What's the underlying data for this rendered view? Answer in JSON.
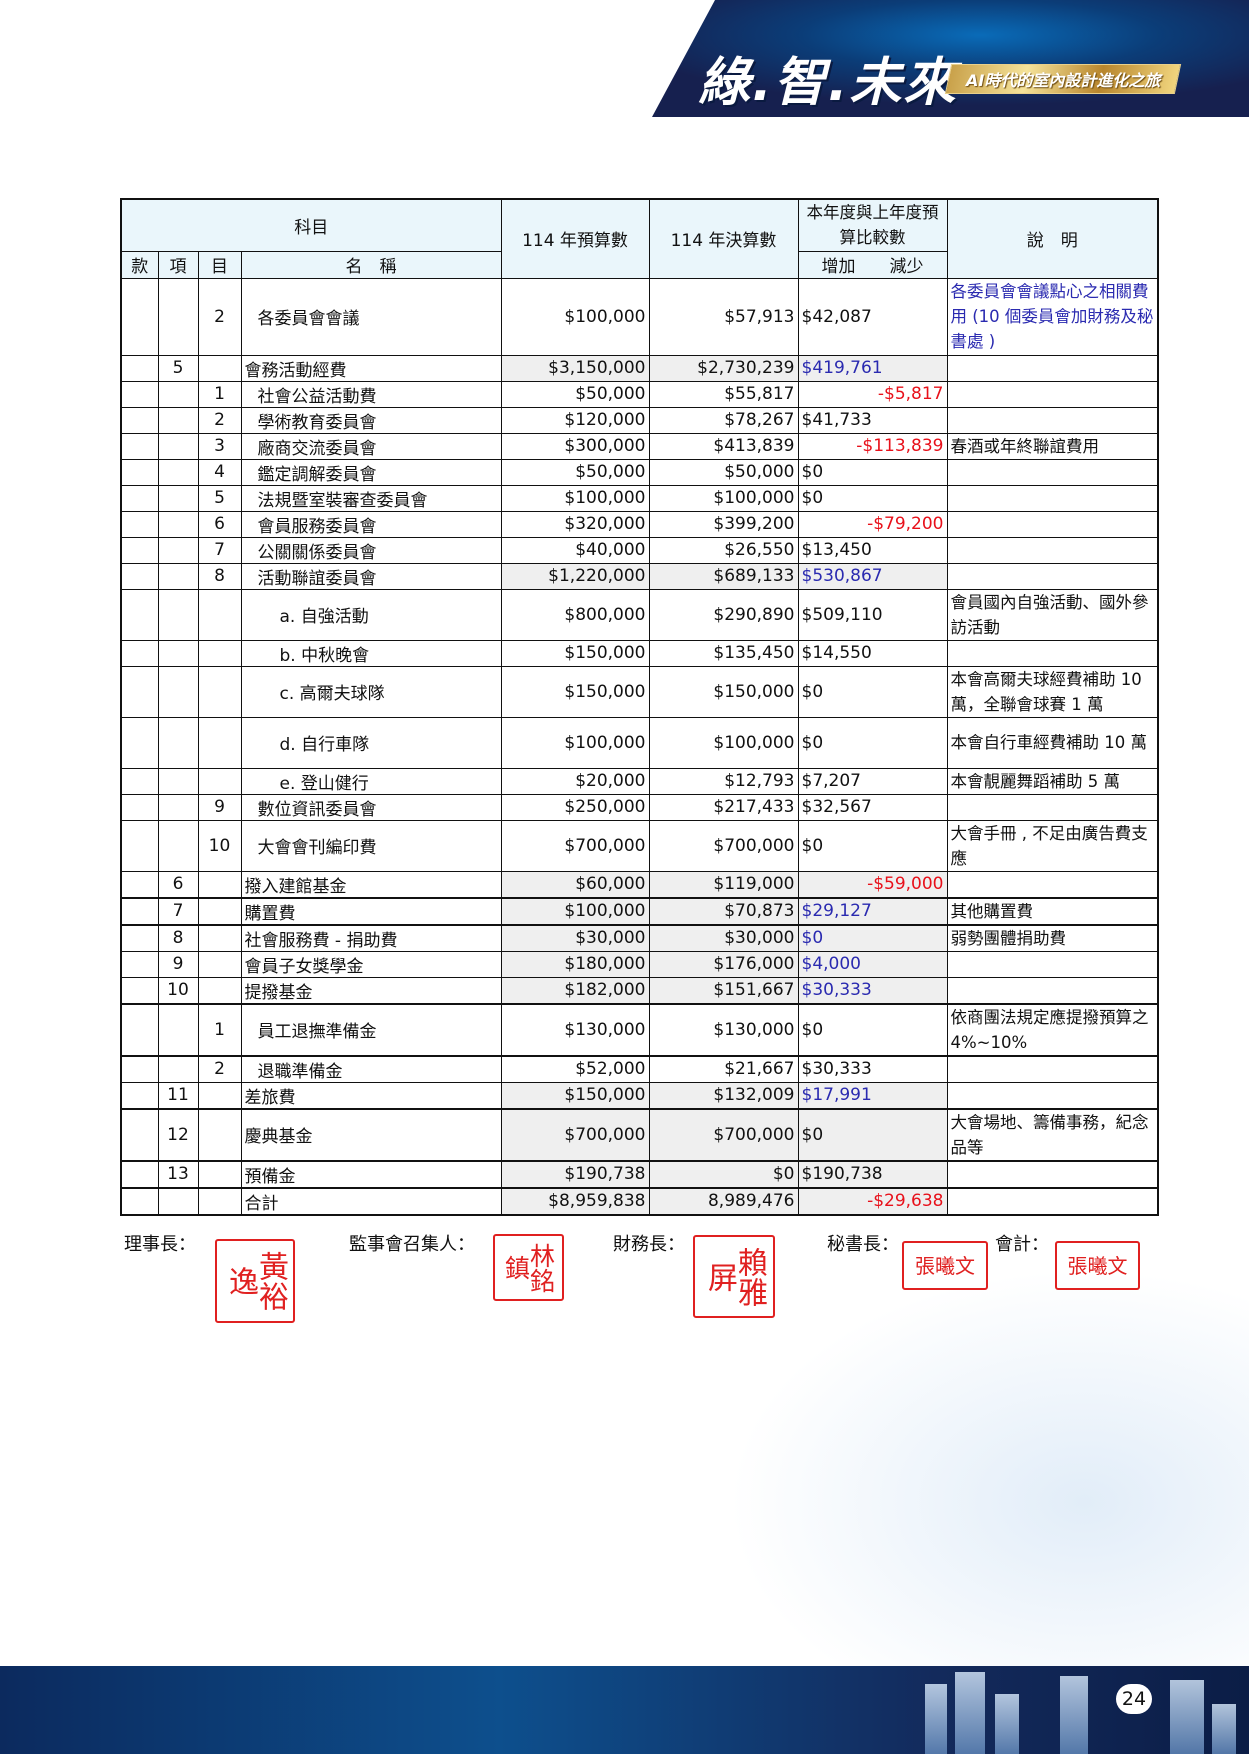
{
  "header": {
    "title": "綠.智.未來",
    "subtitle": "AI時代的室內設計進化之旅"
  },
  "colors": {
    "navy": "#14245a",
    "increase_blue": "#2a2ab0",
    "decrease_red": "#e8101a",
    "header_bg": "#eaf6fb",
    "shade": "#efefef"
  },
  "table": {
    "head": {
      "subject": "科目",
      "kuan": "款",
      "xiang": "項",
      "mu": "目",
      "name": "名　稱",
      "budget": "114 年預算數",
      "actual": "114 年決算數",
      "compare": "本年度與上年度預算比較數",
      "compare_sub": "增加　　減少",
      "note": "說　明"
    },
    "rows": [
      {
        "kuan": "",
        "xiang": "",
        "mu": "2",
        "name": "各委員會會議",
        "level": 1,
        "budget": "$100,000",
        "actual": "$57,913",
        "diff": "$42,087",
        "diff_type": "increase",
        "diff_color": "black",
        "note": "各委員會會議點心之相關費用 (10 個委員會加財務及秘書處 )",
        "note_color": "blue",
        "height": "tall",
        "shaded": false
      },
      {
        "kuan": "",
        "xiang": "5",
        "mu": "",
        "name": "會務活動經費",
        "level": 0,
        "budget": "$3,150,000",
        "actual": "$2,730,239",
        "diff": "$419,761",
        "diff_type": "increase",
        "diff_color": "blue",
        "note": "",
        "height": "single",
        "shaded": true
      },
      {
        "kuan": "",
        "xiang": "",
        "mu": "1",
        "name": "社會公益活動費",
        "level": 1,
        "budget": "$50,000",
        "actual": "$55,817",
        "diff": "-$5,817",
        "diff_type": "decrease",
        "diff_color": "red",
        "note": "",
        "height": "single",
        "shaded": false
      },
      {
        "kuan": "",
        "xiang": "",
        "mu": "2",
        "name": "學術教育委員會",
        "level": 1,
        "budget": "$120,000",
        "actual": "$78,267",
        "diff": "$41,733",
        "diff_type": "increase",
        "diff_color": "black",
        "note": "",
        "height": "single",
        "shaded": false
      },
      {
        "kuan": "",
        "xiang": "",
        "mu": "3",
        "name": "廠商交流委員會",
        "level": 1,
        "budget": "$300,000",
        "actual": "$413,839",
        "diff": "-$113,839",
        "diff_type": "decrease",
        "diff_color": "red",
        "note": "春酒或年終聯誼費用",
        "height": "single",
        "shaded": false
      },
      {
        "kuan": "",
        "xiang": "",
        "mu": "4",
        "name": "鑑定調解委員會",
        "level": 1,
        "budget": "$50,000",
        "actual": "$50,000",
        "diff": "$0",
        "diff_type": "increase",
        "diff_color": "black",
        "note": "",
        "height": "single",
        "shaded": false
      },
      {
        "kuan": "",
        "xiang": "",
        "mu": "5",
        "name": "法規暨室裝審查委員會",
        "level": 1,
        "budget": "$100,000",
        "actual": "$100,000",
        "diff": "$0",
        "diff_type": "increase",
        "diff_color": "black",
        "note": "",
        "height": "single",
        "shaded": false
      },
      {
        "kuan": "",
        "xiang": "",
        "mu": "6",
        "name": "會員服務委員會",
        "level": 1,
        "budget": "$320,000",
        "actual": "$399,200",
        "diff": "-$79,200",
        "diff_type": "decrease",
        "diff_color": "red",
        "note": "",
        "height": "single",
        "shaded": false
      },
      {
        "kuan": "",
        "xiang": "",
        "mu": "7",
        "name": "公關關係委員會",
        "level": 1,
        "budget": "$40,000",
        "actual": "$26,550",
        "diff": "$13,450",
        "diff_type": "increase",
        "diff_color": "black",
        "note": "",
        "height": "single",
        "shaded": false
      },
      {
        "kuan": "",
        "xiang": "",
        "mu": "8",
        "name": "活動聯誼委員會",
        "level": 1,
        "budget": "$1,220,000",
        "actual": "$689,133",
        "diff": "$530,867",
        "diff_type": "increase",
        "diff_color": "blue",
        "note": "",
        "height": "single",
        "shaded": true
      },
      {
        "kuan": "",
        "xiang": "",
        "mu": "",
        "name": "a. 自強活動",
        "level": 2,
        "budget": "$800,000",
        "actual": "$290,890",
        "diff": "$509,110",
        "diff_type": "increase",
        "diff_color": "black",
        "note": "會員國內自強活動、國外參訪活動",
        "height": "double",
        "shaded": false
      },
      {
        "kuan": "",
        "xiang": "",
        "mu": "",
        "name": "b. 中秋晚會",
        "level": 2,
        "budget": "$150,000",
        "actual": "$135,450",
        "diff": "$14,550",
        "diff_type": "increase",
        "diff_color": "black",
        "note": "",
        "height": "single",
        "shaded": false
      },
      {
        "kuan": "",
        "xiang": "",
        "mu": "",
        "name": "c. 高爾夫球隊",
        "level": 2,
        "budget": "$150,000",
        "actual": "$150,000",
        "diff": "$0",
        "diff_type": "increase",
        "diff_color": "black",
        "note": "本會高爾夫球經費補助 10 萬，全聯會球賽 1 萬",
        "height": "double",
        "shaded": false
      },
      {
        "kuan": "",
        "xiang": "",
        "mu": "",
        "name": "d. 自行車隊",
        "level": 2,
        "budget": "$100,000",
        "actual": "$100,000",
        "diff": "$0",
        "diff_type": "increase",
        "diff_color": "black",
        "note": "本會自行車經費補助 10 萬",
        "height": "double",
        "shaded": false
      },
      {
        "kuan": "",
        "xiang": "",
        "mu": "",
        "name": "e. 登山健行",
        "level": 2,
        "budget": "$20,000",
        "actual": "$12,793",
        "diff": "$7,207",
        "diff_type": "increase",
        "diff_color": "black",
        "note": "本會靚麗舞蹈補助 5 萬",
        "height": "single",
        "shaded": false
      },
      {
        "kuan": "",
        "xiang": "",
        "mu": "9",
        "name": "數位資訊委員會",
        "level": 1,
        "budget": "$250,000",
        "actual": "$217,433",
        "diff": "$32,567",
        "diff_type": "increase",
        "diff_color": "black",
        "note": "",
        "height": "single",
        "shaded": false
      },
      {
        "kuan": "",
        "xiang": "",
        "mu": "10",
        "name": "大會會刊編印費",
        "level": 1,
        "budget": "$700,000",
        "actual": "$700,000",
        "diff": "$0",
        "diff_type": "increase",
        "diff_color": "black",
        "note": "大會手冊 , 不足由廣告費支應",
        "height": "double",
        "shaded": false
      },
      {
        "kuan": "",
        "xiang": "6",
        "mu": "",
        "name": "撥入建館基金",
        "level": 0,
        "budget": "$60,000",
        "actual": "$119,000",
        "diff": "-$59,000",
        "diff_type": "decrease",
        "diff_color": "red",
        "note": "",
        "height": "single",
        "shaded": true
      },
      {
        "kuan": "",
        "xiang": "7",
        "mu": "",
        "name": "購置費",
        "level": 0,
        "budget": "$100,000",
        "actual": "$70,873",
        "diff": "$29,127",
        "diff_type": "increase",
        "diff_color": "blue",
        "note": "其他購置費",
        "height": "single",
        "shaded": true,
        "thick": true
      },
      {
        "kuan": "",
        "xiang": "8",
        "mu": "",
        "name": "社會服務費 - 捐助費",
        "level": 0,
        "budget": "$30,000",
        "actual": "$30,000",
        "diff": "$0",
        "diff_type": "increase",
        "diff_color": "blue",
        "note": "弱勢團體捐助費",
        "height": "single",
        "shaded": true,
        "thick": true
      },
      {
        "kuan": "",
        "xiang": "9",
        "mu": "",
        "name": "會員子女獎學金",
        "level": 0,
        "budget": "$180,000",
        "actual": "$176,000",
        "diff": "$4,000",
        "diff_type": "increase",
        "diff_color": "blue",
        "note": "",
        "height": "single",
        "shaded": true
      },
      {
        "kuan": "",
        "xiang": "10",
        "mu": "",
        "name": "提撥基金",
        "level": 0,
        "budget": "$182,000",
        "actual": "$151,667",
        "diff": "$30,333",
        "diff_type": "increase",
        "diff_color": "blue",
        "note": "",
        "height": "single",
        "shaded": true
      },
      {
        "kuan": "",
        "xiang": "",
        "mu": "1",
        "name": "員工退撫準備金",
        "level": 1,
        "budget": "$130,000",
        "actual": "$130,000",
        "diff": "$0",
        "diff_type": "increase",
        "diff_color": "black",
        "note": "依商團法規定應提撥預算之 4%~10%",
        "height": "double",
        "shaded": false,
        "thick": true
      },
      {
        "kuan": "",
        "xiang": "",
        "mu": "2",
        "name": "退職準備金",
        "level": 1,
        "budget": "$52,000",
        "actual": "$21,667",
        "diff": "$30,333",
        "diff_type": "increase",
        "diff_color": "black",
        "note": "",
        "height": "single",
        "shaded": false,
        "thick": true
      },
      {
        "kuan": "",
        "xiang": "11",
        "mu": "",
        "name": "差旅費",
        "level": 0,
        "budget": "$150,000",
        "actual": "$132,009",
        "diff": "$17,991",
        "diff_type": "increase",
        "diff_color": "blue",
        "note": "",
        "height": "single",
        "shaded": true
      },
      {
        "kuan": "",
        "xiang": "12",
        "mu": "",
        "name": "慶典基金",
        "level": 0,
        "budget": "$700,000",
        "actual": "$700,000",
        "diff": "$0",
        "diff_type": "increase",
        "diff_color": "black",
        "note": "大會場地、籌備事務，紀念品等",
        "height": "double",
        "shaded": true,
        "thick": true
      },
      {
        "kuan": "",
        "xiang": "13",
        "mu": "",
        "name": "預備金",
        "level": 0,
        "budget": "$190,738",
        "actual": "$0",
        "diff": "$190,738",
        "diff_type": "increase",
        "diff_color": "black",
        "note": "",
        "height": "single",
        "shaded": true,
        "thick": true
      },
      {
        "kuan": "",
        "xiang": "",
        "mu": "",
        "name": "合計",
        "level": 0,
        "budget": "$8,959,838",
        "actual": "8,989,476",
        "diff": "-$29,638",
        "diff_type": "decrease",
        "diff_color": "red",
        "note": "",
        "height": "single",
        "shaded": true,
        "thick": true
      }
    ]
  },
  "signatures": [
    {
      "label": "理事長：",
      "seal": "黃裕逸"
    },
    {
      "label": "監事會召集人：",
      "seal": "林銘鎮"
    },
    {
      "label": "財務長：",
      "seal": "賴雅屏"
    },
    {
      "label": "秘書長：",
      "seal": "張曦文"
    },
    {
      "label": "會計：",
      "seal": "張曦文"
    }
  ],
  "page_number": "24"
}
